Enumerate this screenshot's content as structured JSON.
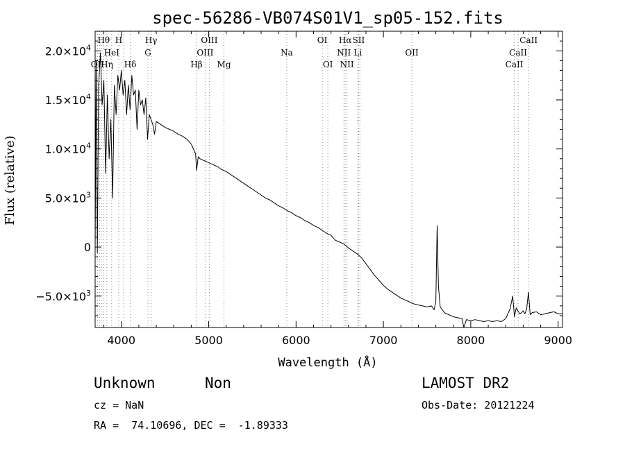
{
  "chart_data": {
    "type": "line",
    "title": "spec-56286-VB074S01V1_sp05-152.fits",
    "xlabel": "Wavelength (Å)",
    "ylabel": "Flux (relative)",
    "xlim": [
      3700,
      9050
    ],
    "ylim": [
      -8200,
      22000
    ],
    "x_ticks": [
      {
        "value": 4000,
        "label": "4000"
      },
      {
        "value": 5000,
        "label": "5000"
      },
      {
        "value": 6000,
        "label": "6000"
      },
      {
        "value": 7000,
        "label": "7000"
      },
      {
        "value": 8000,
        "label": "8000"
      },
      {
        "value": 9000,
        "label": "9000"
      }
    ],
    "y_ticks": [
      {
        "value": 20000,
        "mantissa": "2.0×10",
        "exp": "4"
      },
      {
        "value": 15000,
        "mantissa": "1.5×10",
        "exp": "4"
      },
      {
        "value": 10000,
        "mantissa": "1.0×10",
        "exp": "4"
      },
      {
        "value": 5000,
        "mantissa": "5.0×10",
        "exp": "3"
      },
      {
        "value": 0,
        "mantissa": "0",
        "exp": ""
      },
      {
        "value": -5000,
        "mantissa": "−5.0×10",
        "exp": "3"
      }
    ],
    "grid": false,
    "series": [
      {
        "color": "#000000",
        "x": [
          3700,
          3712,
          3725,
          3740,
          3760,
          3780,
          3800,
          3820,
          3840,
          3860,
          3880,
          3900,
          3920,
          3940,
          3960,
          3980,
          4000,
          4020,
          4040,
          4060,
          4080,
          4100,
          4120,
          4140,
          4160,
          4180,
          4200,
          4220,
          4240,
          4260,
          4280,
          4300,
          4320,
          4340,
          4360,
          4380,
          4400,
          4450,
          4500,
          4550,
          4600,
          4650,
          4700,
          4750,
          4800,
          4850,
          4861,
          4880,
          4900,
          4950,
          5000,
          5050,
          5100,
          5150,
          5200,
          5250,
          5300,
          5350,
          5400,
          5450,
          5500,
          5550,
          5600,
          5650,
          5700,
          5750,
          5800,
          5850,
          5900,
          5950,
          6000,
          6050,
          6100,
          6150,
          6200,
          6250,
          6300,
          6350,
          6400,
          6450,
          6500,
          6550,
          6563,
          6600,
          6650,
          6700,
          6750,
          6800,
          6850,
          6900,
          6950,
          7000,
          7050,
          7100,
          7150,
          7200,
          7250,
          7300,
          7350,
          7400,
          7450,
          7500,
          7550,
          7580,
          7600,
          7615,
          7630,
          7650,
          7700,
          7750,
          7800,
          7850,
          7900,
          7920,
          7950,
          8000,
          8050,
          8100,
          8150,
          8200,
          8250,
          8300,
          8350,
          8400,
          8450,
          8480,
          8500,
          8520,
          8540,
          8560,
          8580,
          8600,
          8620,
          8640,
          8660,
          8680,
          8700,
          8750,
          8800,
          8850,
          8900,
          8950,
          9000,
          9050
        ],
        "y": [
          0,
          19000,
          -600,
          16500,
          19800,
          14500,
          17000,
          7500,
          15500,
          9000,
          13000,
          5000,
          16500,
          13500,
          17500,
          16000,
          18000,
          15500,
          17000,
          13500,
          16500,
          14000,
          17500,
          15500,
          16000,
          12000,
          16000,
          14500,
          15000,
          13500,
          15200,
          11000,
          13500,
          13000,
          12500,
          11500,
          12800,
          12500,
          12200,
          12000,
          11800,
          11500,
          11300,
          11000,
          10500,
          9500,
          7800,
          9200,
          9000,
          8800,
          8600,
          8400,
          8200,
          7900,
          7700,
          7400,
          7100,
          6800,
          6500,
          6200,
          5900,
          5600,
          5300,
          5000,
          4800,
          4500,
          4200,
          4000,
          3700,
          3500,
          3200,
          3000,
          2700,
          2500,
          2200,
          2000,
          1700,
          1400,
          1200,
          700,
          500,
          300,
          200,
          -100,
          -400,
          -700,
          -1100,
          -1700,
          -2300,
          -2900,
          -3400,
          -3900,
          -4300,
          -4600,
          -4900,
          -5200,
          -5400,
          -5600,
          -5800,
          -5900,
          -6000,
          -6100,
          -6000,
          -6400,
          -5600,
          2200,
          -4000,
          -6100,
          -6700,
          -6900,
          -7100,
          -7200,
          -7300,
          -8200,
          -7400,
          -7500,
          -7400,
          -7500,
          -7600,
          -7500,
          -7600,
          -7500,
          -7600,
          -7300,
          -6300,
          -5000,
          -7100,
          -6200,
          -6500,
          -6800,
          -6700,
          -6500,
          -6800,
          -6300,
          -4600,
          -6900,
          -6700,
          -6600,
          -6900,
          -6800,
          -6700,
          -6600,
          -6800,
          -6800
        ]
      }
    ],
    "line_groups": [
      {
        "color": "#888888",
        "style": "dotted",
        "wavelengths": [
          3727,
          3750,
          3771,
          3798,
          3835,
          3889,
          3970,
          4102,
          4341,
          4861,
          5007,
          5175,
          5894,
          6300,
          6364,
          6548,
          6583,
          6716,
          6731,
          7325,
          8498,
          8542,
          8662
        ]
      },
      {
        "color": "#e07070",
        "style": "dotted",
        "wavelengths": [
          4026,
          4304,
          4959,
          6563,
          6707
        ]
      }
    ],
    "line_labels": [
      {
        "text": "Hθ",
        "x": 3798,
        "row": 1
      },
      {
        "text": "H",
        "x": 3970,
        "row": 1
      },
      {
        "text": "Hγ",
        "x": 4341,
        "row": 1
      },
      {
        "text": "OIII",
        "x": 5007,
        "row": 1
      },
      {
        "text": "OI",
        "x": 6300,
        "row": 1
      },
      {
        "text": "Hα",
        "x": 6563,
        "row": 1
      },
      {
        "text": "SII",
        "x": 6716,
        "row": 1
      },
      {
        "text": "CaII",
        "x": 8662,
        "row": 1
      },
      {
        "text": "HeI",
        "x": 3889,
        "row": 2
      },
      {
        "text": "G",
        "x": 4304,
        "row": 2
      },
      {
        "text": "OIII",
        "x": 4959,
        "row": 2
      },
      {
        "text": "Na",
        "x": 5894,
        "row": 2
      },
      {
        "text": "NII",
        "x": 6548,
        "row": 2
      },
      {
        "text": "Li",
        "x": 6707,
        "row": 2
      },
      {
        "text": "OII",
        "x": 7325,
        "row": 2
      },
      {
        "text": "CaII",
        "x": 8542,
        "row": 2
      },
      {
        "text": "OII",
        "x": 3727,
        "row": 3
      },
      {
        "text": "Hη",
        "x": 3835,
        "row": 3
      },
      {
        "text": "Hδ",
        "x": 4102,
        "row": 3
      },
      {
        "text": "Hβ",
        "x": 4861,
        "row": 3
      },
      {
        "text": "Mg",
        "x": 5175,
        "row": 3
      },
      {
        "text": "OI",
        "x": 6364,
        "row": 3
      },
      {
        "text": "NII",
        "x": 6583,
        "row": 3
      },
      {
        "text": "CaII",
        "x": 8498,
        "row": 3
      }
    ]
  },
  "footer": {
    "class_label": "Unknown",
    "subclass_label": "Non",
    "survey": "LAMOST DR2",
    "redshift": "cz = NaN",
    "obs_date": "Obs-Date: 20121224",
    "coords": "RA =  74.10696, DEC =  -1.89333"
  }
}
